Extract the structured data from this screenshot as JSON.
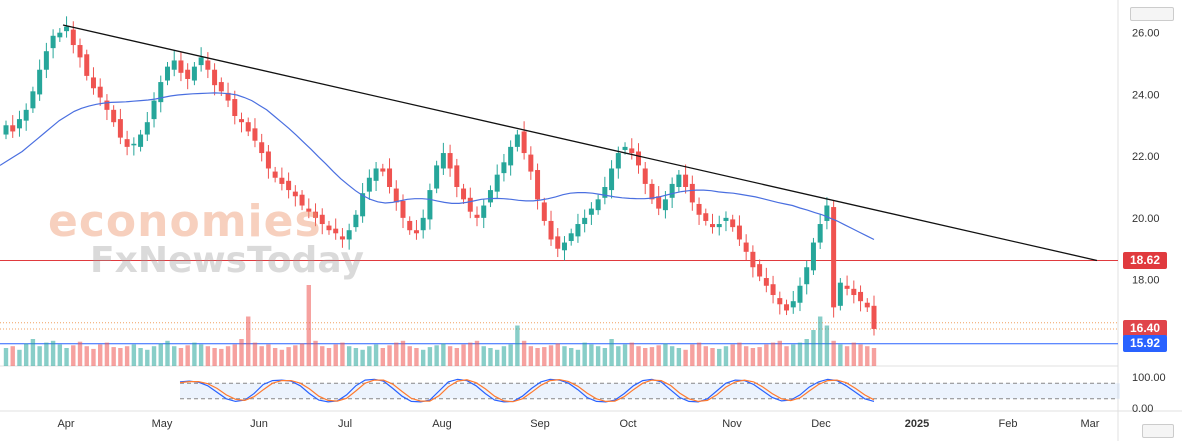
{
  "watermark": {
    "line1": "economies",
    "line2": "FxNewsToday"
  },
  "chart_data": {
    "type": "candlestick",
    "price_axis": {
      "ticks": [
        "26.00",
        "24.00",
        "22.00",
        "20.00",
        "18.00"
      ],
      "range": [
        15.2,
        26.8
      ]
    },
    "time_axis": {
      "ticks": [
        "Apr",
        "May",
        "Jun",
        "Jul",
        "Aug",
        "Sep",
        "Oct",
        "Nov",
        "Dec",
        "2025",
        "Feb",
        "Mar"
      ]
    },
    "price_labels": [
      {
        "value": "18.62",
        "color": "#e03a3e"
      },
      {
        "value": "16.40",
        "color": "#e0444a"
      },
      {
        "value": "15.92",
        "color": "#2962ff"
      }
    ],
    "horizontal_lines": [
      {
        "value": 18.62,
        "color": "#e03a3e",
        "style": "solid"
      },
      {
        "value": 16.4,
        "color": "#f0a060",
        "style": "dotted"
      },
      {
        "value": 15.92,
        "color": "#2962ff",
        "style": "solid"
      }
    ],
    "trendline": {
      "from": {
        "date": "late Mar",
        "price": 26.25
      },
      "to": {
        "date": "late Feb",
        "price": 18.62
      }
    },
    "close_series": [
      23.0,
      22.8,
      23.2,
      23.5,
      24.1,
      24.8,
      25.4,
      25.9,
      26.0,
      26.2,
      25.6,
      25.2,
      24.6,
      24.2,
      23.9,
      23.5,
      23.1,
      22.6,
      22.3,
      22.4,
      22.7,
      23.1,
      23.8,
      24.4,
      24.9,
      25.1,
      24.7,
      24.5,
      24.9,
      25.2,
      24.8,
      24.3,
      24.1,
      23.8,
      23.3,
      23.1,
      22.8,
      22.5,
      22.1,
      21.6,
      21.3,
      21.1,
      20.9,
      20.7,
      20.4,
      20.2,
      20.0,
      19.8,
      19.6,
      19.5,
      19.3,
      19.6,
      20.1,
      20.8,
      21.3,
      21.6,
      21.5,
      21.0,
      20.5,
      20.0,
      19.6,
      19.5,
      20.0,
      20.9,
      21.7,
      22.1,
      21.6,
      21.0,
      20.6,
      20.2,
      20.0,
      20.4,
      20.9,
      21.4,
      21.8,
      22.3,
      22.7,
      22.1,
      21.5,
      20.6,
      19.9,
      19.3,
      19.0,
      19.2,
      19.5,
      19.8,
      20.0,
      20.3,
      20.6,
      21.0,
      21.6,
      22.1,
      22.3,
      22.1,
      21.7,
      21.1,
      20.6,
      20.3,
      20.6,
      21.1,
      21.4,
      21.0,
      20.5,
      20.1,
      19.9,
      19.7,
      19.8,
      20.0,
      19.7,
      19.3,
      18.9,
      18.4,
      18.1,
      17.8,
      17.5,
      17.2,
      17.0,
      17.3,
      17.8,
      18.4,
      19.2,
      19.8,
      20.4,
      17.1,
      17.9,
      17.7,
      17.5,
      17.3,
      17.1,
      16.4
    ],
    "ma_series": [
      21.7,
      21.85,
      22.0,
      22.15,
      22.35,
      22.55,
      22.75,
      22.95,
      23.15,
      23.3,
      23.45,
      23.55,
      23.62,
      23.68,
      23.72,
      23.74,
      23.75,
      23.76,
      23.78,
      23.8,
      23.82,
      23.85,
      23.9,
      23.95,
      23.98,
      24.0,
      24.02,
      24.03,
      24.04,
      24.05,
      24.04,
      24.02,
      23.98,
      23.9,
      23.8,
      23.65,
      23.5,
      23.3,
      23.1,
      22.9,
      22.68,
      22.45,
      22.22,
      21.98,
      21.75,
      21.5,
      21.27,
      21.07,
      20.88,
      20.72,
      20.6,
      20.52,
      20.48,
      20.5,
      20.55,
      20.6,
      20.62,
      20.62,
      20.6,
      20.55,
      20.5,
      20.47,
      20.47,
      20.5,
      20.55,
      20.6,
      20.62,
      20.63,
      20.62,
      20.6,
      20.57,
      20.55,
      20.55,
      20.58,
      20.62,
      20.68,
      20.75,
      20.8,
      20.82,
      20.82,
      20.8,
      20.76,
      20.72,
      20.68,
      20.65,
      20.63,
      20.62,
      20.62,
      20.64,
      20.68,
      20.74,
      20.8,
      20.85,
      20.88,
      20.9,
      20.9,
      20.88,
      20.84,
      20.82,
      20.8,
      20.76,
      20.72,
      20.68,
      20.62,
      20.56,
      20.5,
      20.45,
      20.4,
      20.32,
      20.25,
      20.17,
      20.1,
      20.0,
      19.9,
      19.78,
      19.66,
      19.54,
      19.42,
      19.3
    ],
    "volume_series": [
      20,
      22,
      18,
      25,
      30,
      22,
      26,
      28,
      24,
      20,
      23,
      27,
      22,
      19,
      24,
      26,
      21,
      20,
      22,
      24,
      20,
      18,
      22,
      25,
      28,
      22,
      20,
      23,
      26,
      24,
      22,
      20,
      19,
      22,
      24,
      30,
      55,
      26,
      22,
      24,
      20,
      18,
      21,
      23,
      25,
      90,
      28,
      22,
      20,
      24,
      26,
      22,
      20,
      18,
      22,
      24,
      20,
      23,
      26,
      28,
      22,
      20,
      18,
      21,
      23,
      25,
      22,
      20,
      24,
      26,
      28,
      22,
      20,
      18,
      22,
      24,
      45,
      28,
      22,
      20,
      21,
      23,
      25,
      22,
      20,
      18,
      26,
      24,
      22,
      20,
      30,
      22,
      24,
      26,
      22,
      20,
      21,
      23,
      25,
      22,
      20,
      18,
      24,
      26,
      22,
      20,
      19,
      22,
      24,
      26,
      22,
      20,
      21,
      24,
      26,
      28,
      22,
      24,
      26,
      30,
      40,
      55,
      45,
      28,
      24,
      22,
      26,
      24,
      22,
      20
    ],
    "oscillator": {
      "ticks": [
        "100.00",
        "0.00"
      ],
      "k_series": [
        85,
        88,
        84,
        70,
        45,
        20,
        10,
        15,
        40,
        75,
        90,
        92,
        88,
        70,
        40,
        15,
        8,
        12,
        35,
        70,
        92,
        95,
        88,
        60,
        30,
        10,
        8,
        15,
        50,
        85,
        95,
        90,
        70,
        40,
        15,
        8,
        10,
        30,
        60,
        85,
        95,
        92,
        80,
        55,
        25,
        10,
        8,
        15,
        40,
        70,
        90,
        95,
        85,
        55,
        25,
        10,
        8,
        20,
        50,
        80,
        92,
        90,
        75,
        50,
        25,
        12,
        15,
        35,
        65,
        85,
        95,
        90,
        70,
        45,
        20,
        10
      ],
      "d_series": [
        82,
        86,
        86,
        78,
        60,
        35,
        18,
        14,
        28,
        55,
        80,
        90,
        90,
        80,
        58,
        30,
        14,
        11,
        22,
        50,
        80,
        92,
        92,
        76,
        48,
        22,
        11,
        11,
        32,
        66,
        88,
        93,
        82,
        58,
        30,
        12,
        9,
        20,
        45,
        72,
        90,
        94,
        86,
        68,
        42,
        20,
        10,
        11,
        28,
        55,
        80,
        92,
        90,
        72,
        42,
        20,
        10,
        14,
        35,
        65,
        85,
        92,
        85,
        65,
        40,
        20,
        13,
        24,
        50,
        75,
        90,
        92,
        82,
        60,
        35,
        16
      ]
    }
  }
}
